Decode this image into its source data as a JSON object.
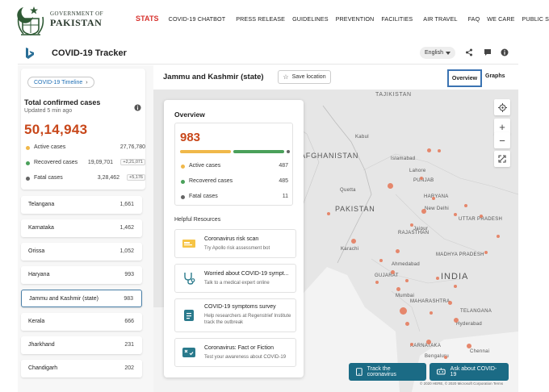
{
  "gov": {
    "line1": "GOVERNMENT OF",
    "line2": "PAKISTAN",
    "nav": [
      {
        "label": "STATS",
        "name": "nav-stats"
      },
      {
        "label": "COVID-19  CHATBOT",
        "name": "nav-chatbot"
      },
      {
        "label": "PRESS RELEASE",
        "name": "nav-press-release"
      },
      {
        "label": "GUIDELINES",
        "name": "nav-guidelines"
      },
      {
        "label": "PREVENTION",
        "name": "nav-prevention"
      },
      {
        "label": "FACILITIES",
        "name": "nav-facilities"
      },
      {
        "label": "AIR TRAVEL",
        "name": "nav-air-travel"
      },
      {
        "label": "FAQ",
        "name": "nav-faq"
      },
      {
        "label": "WE CARE",
        "name": "nav-we-care"
      },
      {
        "label": "PUBLIC SERVICE MESSAGE",
        "name": "nav-public-service-message"
      }
    ]
  },
  "tracker": {
    "title": "COVID-19 Tracker",
    "language": "English",
    "icons": [
      "share-icon",
      "comment-icon",
      "info-icon"
    ]
  },
  "summary": {
    "timeline_button": "COVID-19 Timeline",
    "title": "Total confirmed cases",
    "updated": "Updated 5 min ago",
    "total": "50,14,943",
    "rows": [
      {
        "label": "Active cases",
        "value": "27,76,780",
        "change": "",
        "color": "#f0b84a"
      },
      {
        "label": "Recovered cases",
        "value": "19,09,701",
        "change": "+2,21,071",
        "color": "#4aa05a"
      },
      {
        "label": "Fatal cases",
        "value": "3,28,462",
        "change": "+5,176",
        "color": "#666666"
      }
    ]
  },
  "states": [
    {
      "name": "Telangana",
      "count": "1,661"
    },
    {
      "name": "Karnataka",
      "count": "1,462"
    },
    {
      "name": "Orissa",
      "count": "1,052"
    },
    {
      "name": "Haryana",
      "count": "993"
    },
    {
      "name": "Jammu and Kashmir (state)",
      "count": "983"
    },
    {
      "name": "Kerala",
      "count": "666"
    },
    {
      "name": "Jharkhand",
      "count": "231"
    },
    {
      "name": "Chandigarh",
      "count": "202"
    }
  ],
  "selected_state_index": 4,
  "map": {
    "region_title": "Jammu and Kashmir (state)",
    "save_label": "Save location",
    "tabs": [
      "Overview",
      "Graphs"
    ],
    "labels": {
      "tajikistan": "TAJIKISTAN",
      "afghanistan": "AFGHANISTAN",
      "pakistan": "PAKISTAN",
      "india": "INDIA",
      "punjab": "PUNJAB",
      "haryana": "HARYANA",
      "uttar_pradesh": "UTTAR PRADESH",
      "rajasthan": "RAJASTHAN",
      "gujarat": "GUJARAT",
      "madhya_pradesh": "MADHYA PRADESH",
      "maharashtra": "MAHARASHTRA",
      "karnataka": "KARNATAKA",
      "telangana": "TELANGANA",
      "islamabad": "Islamabad",
      "lahore": "Lahore",
      "quetta": "Quetta",
      "karachi": "Karachi",
      "new_delhi": "New Delhi",
      "jaipur": "Jaipur",
      "ahmedabad": "Ahmedabad",
      "mumbai": "Mumbai",
      "hyderabad": "Hyderabad",
      "bengaluru": "Bengaluru",
      "kabul": "Kabul",
      "chennai": "Chennai"
    },
    "copyright": "© 2020 HERE, © 2020 Microsoft Corporation  Terms",
    "actions": {
      "track": "Track the coronavirus",
      "ask": "Ask about COVID-19"
    }
  },
  "overview": {
    "title": "Overview",
    "total": "983",
    "bar_fractions": {
      "active": 0.495,
      "recovered": 0.493,
      "fatal": 0.011
    },
    "rows": [
      {
        "label": "Active cases",
        "value": "487",
        "color": "#f0b84a"
      },
      {
        "label": "Recovered cases",
        "value": "485",
        "color": "#4aa05a"
      },
      {
        "label": "Fatal cases",
        "value": "11",
        "color": "#666666"
      }
    ]
  },
  "resources": {
    "title": "Helpful Resources",
    "items": [
      {
        "title": "Coronavirus risk scan",
        "subtitle": "Try Apollo risk assessment bot",
        "icon": "apollo-logo-icon"
      },
      {
        "title": "Worried about COVID-19 sympt...",
        "subtitle": "Talk to a medical expert online",
        "icon": "stethoscope-icon"
      },
      {
        "title": "COVID-19 symptoms survey",
        "subtitle": "Help researchers at Regenstrief Institute track the outbreak",
        "icon": "survey-icon"
      },
      {
        "title": "Coronavirus: Fact or Fiction",
        "subtitle": "Test your awareness about COVID-19",
        "icon": "quiz-icon"
      }
    ]
  },
  "colors": {
    "accent_red": "#c8471a",
    "stats_red": "#d7322e",
    "active": "#f0b84a",
    "recovered": "#4aa05a",
    "fatal": "#666666",
    "action_teal": "#1b6b85",
    "link_blue": "#1f6fb5"
  }
}
